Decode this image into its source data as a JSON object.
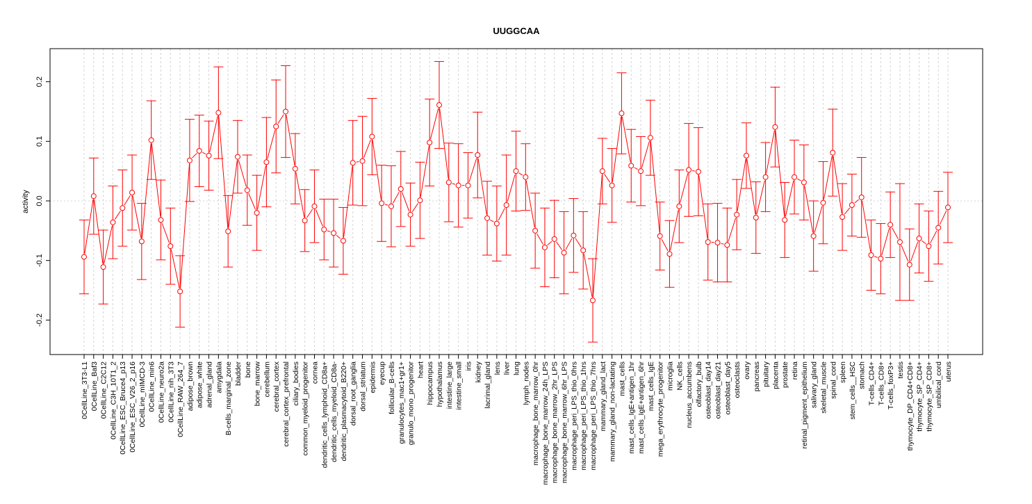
{
  "chart_data": {
    "type": "line",
    "title": "UUGGCAA",
    "xlabel": "",
    "ylabel": "activity",
    "ylim": [
      -0.255,
      0.26
    ],
    "yticks": [
      -0.2,
      -0.1,
      0.0,
      0.1,
      0.2
    ],
    "ytick_labels": [
      "-0.2",
      "-0.1",
      "0.0",
      "0.1",
      "0.2"
    ],
    "grid": true,
    "colors": {
      "series": "#ff0000",
      "grid": "#d3d3d3",
      "axis": "#000000"
    },
    "categories": [
      "0CellLine_3T3-L1",
      "0CellLine_Baf3",
      "0CellLine_C2C12",
      "0CellLine_C3H_10T1_2",
      "0CellLine_ESC_Bruce4_p13",
      "0CellLine_ESC_V26_2_p16",
      "0CellLine_mIMCD-3",
      "0CellLine_min6",
      "0CellLine_neuro2a",
      "0CellLine_nih_3T3",
      "0CellLine_RAW_264_7",
      "adipose_brown",
      "adipose_white",
      "adrenal_gland",
      "amygdala",
      "B-cells_marginal_zone",
      "bladder",
      "bone",
      "bone_marrow",
      "cerebellum",
      "cerebral_cortex",
      "cerebral_cortex_prefrontal",
      "ciliary_bodies",
      "common_myeloid_progenitor",
      "cornea",
      "dendritic_cells_lymphoid_CD8a+",
      "dendritic_cells_myeloid_CD8a-",
      "dendritic_plasmacytoid_B220+",
      "dorsal_root_ganglia",
      "dorsal_striatum",
      "epidermis",
      "eyecup",
      "follicular_B-cells",
      "granulocytes_mac1+gr1+",
      "granulo_mono_progenitor",
      "heart",
      "hippocampus",
      "hypothalamus",
      "intestine_large",
      "intestine_small",
      "iris",
      "kidney",
      "lacrimal_gland",
      "lens",
      "liver",
      "lung",
      "lymph_nodes",
      "macrophage_bone_marrow_0hr",
      "macrophage_bone_marrow_24h_LPS",
      "macrophage_bone_marrow_2hr_LPS",
      "macrophage_bone_marrow_6hr_LPS",
      "macrophage_peri_LPS_thio_0hrs",
      "macrophage_peri_LPS_thio_1hrs",
      "macrophage_peri_LPS_thio_7hrs",
      "mammary_gland_lact",
      "mammary_gland_non-lactating",
      "mast_cells",
      "mast_cells_IgE+antigen_1hr",
      "mast_cells_IgE+antigen_6hr",
      "mast_cells_IgE",
      "mega_erythrocyte_progenitor",
      "microglia",
      "NK_cells",
      "nucleus_accumbens",
      "olfactory_bulb",
      "osteoblast_day14",
      "osteoblast_day21",
      "osteoblast_day5",
      "osteoclasts",
      "ovary",
      "pancreas",
      "pituitary",
      "placenta",
      "prostate",
      "retina",
      "retinal_pigment_epithelium",
      "salivary_gland",
      "skeletal_muscle",
      "spinal_cord",
      "spleen",
      "stem_cells__HSC",
      "stomach",
      "T-cells_CD4+",
      "T-cells_CD8+",
      "T-cells_foxP3+",
      "testis",
      "thymocyte_DP_CD4+CD8+",
      "thymocyte_SP_CD4+",
      "thymocyte_SP_CD8+",
      "umbilical_cord",
      "uterus"
    ],
    "values": [
      -0.094,
      0.008,
      -0.111,
      -0.036,
      -0.012,
      0.014,
      -0.068,
      0.102,
      -0.032,
      -0.076,
      -0.152,
      0.068,
      0.084,
      0.076,
      0.148,
      -0.051,
      0.074,
      0.018,
      -0.02,
      0.065,
      0.125,
      0.15,
      0.054,
      -0.033,
      -0.009,
      -0.048,
      -0.054,
      -0.067,
      0.064,
      0.067,
      0.108,
      -0.004,
      -0.009,
      0.02,
      -0.023,
      0.001,
      0.098,
      0.161,
      0.031,
      0.026,
      0.026,
      0.077,
      -0.029,
      -0.038,
      -0.007,
      0.05,
      0.04,
      -0.05,
      -0.078,
      -0.064,
      -0.087,
      -0.058,
      -0.083,
      -0.167,
      0.05,
      0.026,
      0.147,
      0.059,
      0.05,
      0.106,
      -0.059,
      -0.089,
      -0.009,
      0.052,
      0.049,
      -0.069,
      -0.07,
      -0.074,
      -0.023,
      0.076,
      -0.028,
      0.04,
      0.124,
      -0.032,
      0.04,
      0.031,
      -0.059,
      -0.003,
      0.081,
      -0.027,
      -0.007,
      0.006,
      -0.091,
      -0.097,
      -0.04,
      -0.069,
      -0.107,
      -0.063,
      -0.076,
      -0.045,
      -0.011
    ],
    "errors": [
      0.062,
      0.064,
      0.062,
      0.061,
      0.064,
      0.063,
      0.064,
      0.066,
      0.067,
      0.064,
      0.06,
      0.069,
      0.06,
      0.058,
      0.077,
      0.06,
      0.061,
      0.059,
      0.063,
      0.075,
      0.078,
      0.077,
      0.059,
      0.052,
      0.061,
      0.051,
      0.057,
      0.056,
      0.071,
      0.075,
      0.064,
      0.064,
      0.068,
      0.063,
      0.053,
      0.064,
      0.073,
      0.073,
      0.066,
      0.07,
      0.055,
      0.072,
      0.062,
      0.063,
      0.084,
      0.067,
      0.056,
      0.063,
      0.066,
      0.065,
      0.069,
      0.062,
      0.065,
      0.07,
      0.055,
      0.062,
      0.068,
      0.061,
      0.058,
      0.063,
      0.057,
      0.056,
      0.061,
      0.078,
      0.074,
      0.064,
      0.066,
      0.062,
      0.059,
      0.055,
      0.06,
      0.058,
      0.067,
      0.063,
      0.062,
      0.063,
      0.059,
      0.069,
      0.073,
      0.056,
      0.052,
      0.067,
      0.059,
      0.059,
      0.055,
      0.098,
      0.06,
      0.058,
      0.059,
      0.061,
      0.059
    ]
  }
}
